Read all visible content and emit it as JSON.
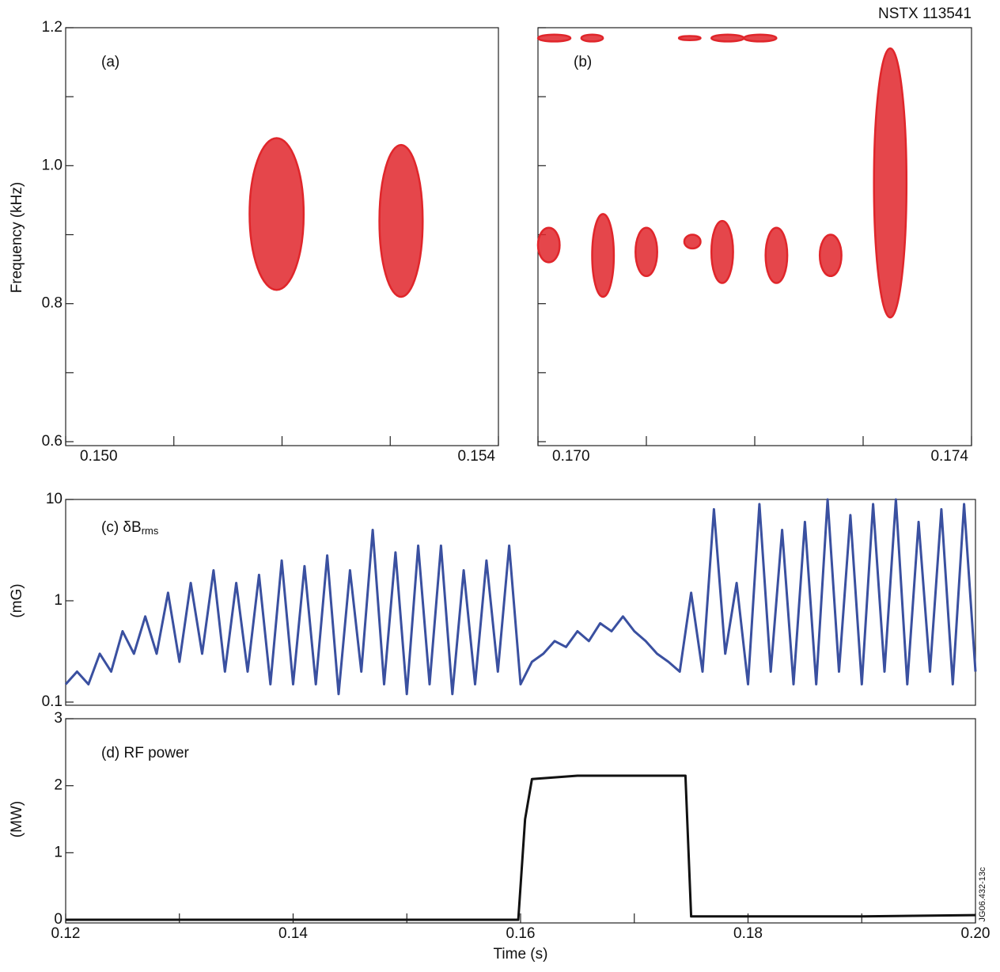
{
  "header": {
    "shot": "NSTX 113541",
    "figure_id": "JG06.432-13c",
    "frequency_label": "Frequency (kHz)"
  },
  "chart_data": [
    {
      "type": "spectrogram",
      "label": "(a)",
      "color": "#e0262b",
      "xlim": [
        0.15,
        0.154
      ],
      "xticks": [
        {
          "value": 0.15,
          "label": "0.150"
        },
        {
          "value": 0.154,
          "label": "0.154"
        }
      ],
      "xminor": [
        0.151,
        0.152,
        0.153
      ],
      "ylim": [
        0.6,
        1.2
      ],
      "yticks": [
        0.6,
        0.8,
        {
          "value": 1,
          "label": "1.0"
        },
        1.2
      ],
      "yminor": [
        0.7,
        0.9,
        1.1
      ],
      "y_tick_labels": true,
      "regions": [
        {
          "x": [
            0.1517,
            0.1522
          ],
          "y": [
            0.82,
            1.04
          ]
        },
        {
          "x": [
            0.1529,
            0.1533
          ],
          "y": [
            0.81,
            1.03
          ]
        }
      ]
    },
    {
      "type": "spectrogram",
      "label": "(b)",
      "color": "#e0262b",
      "xlim": [
        0.17,
        0.174
      ],
      "xticks": [
        {
          "value": 0.17,
          "label": "0.170"
        },
        {
          "value": 0.174,
          "label": "0.174"
        }
      ],
      "xminor": [
        0.171,
        0.172,
        0.173
      ],
      "ylim": [
        0.6,
        1.2
      ],
      "yticks": [
        0.6,
        0.8,
        1,
        1.2
      ],
      "yminor": [
        0.7,
        0.9,
        1.1
      ],
      "y_tick_labels": false,
      "regions": [
        {
          "x": [
            0.17,
            0.1703
          ],
          "y": [
            1.18,
            1.19
          ]
        },
        {
          "x": [
            0.1704,
            0.1706
          ],
          "y": [
            1.18,
            1.19
          ]
        },
        {
          "x": [
            0.1713,
            0.1715
          ],
          "y": [
            1.182,
            1.188
          ]
        },
        {
          "x": [
            0.1716,
            0.1719
          ],
          "y": [
            1.18,
            1.19
          ]
        },
        {
          "x": [
            0.1719,
            0.1722
          ],
          "y": [
            1.18,
            1.19
          ]
        },
        {
          "x": [
            0.17,
            0.1702
          ],
          "y": [
            0.86,
            0.91
          ]
        },
        {
          "x": [
            0.1705,
            0.1707
          ],
          "y": [
            0.81,
            0.93
          ]
        },
        {
          "x": [
            0.1709,
            0.1711
          ],
          "y": [
            0.84,
            0.91
          ]
        },
        {
          "x": [
            0.17135,
            0.1715
          ],
          "y": [
            0.88,
            0.9
          ]
        },
        {
          "x": [
            0.1716,
            0.1718
          ],
          "y": [
            0.83,
            0.92
          ]
        },
        {
          "x": [
            0.1721,
            0.1723
          ],
          "y": [
            0.83,
            0.91
          ]
        },
        {
          "x": [
            0.1726,
            0.1728
          ],
          "y": [
            0.84,
            0.9
          ]
        },
        {
          "x": [
            0.1731,
            0.1734
          ],
          "y": [
            0.78,
            1.17
          ]
        }
      ]
    },
    {
      "type": "line",
      "label": "(c) δB",
      "label_subscript": "rms",
      "ylabel": "(mG)",
      "color": "#3a50a0",
      "log_y": true,
      "xlim": [
        0.12,
        0.2
      ],
      "ylim": [
        0.1,
        10
      ],
      "yticks": [
        0.1,
        1,
        10
      ],
      "x": [
        0.12,
        0.121,
        0.122,
        0.123,
        0.124,
        0.125,
        0.126,
        0.127,
        0.128,
        0.129,
        0.13,
        0.131,
        0.132,
        0.133,
        0.134,
        0.135,
        0.136,
        0.137,
        0.138,
        0.139,
        0.14,
        0.141,
        0.142,
        0.143,
        0.144,
        0.145,
        0.146,
        0.147,
        0.148,
        0.149,
        0.15,
        0.151,
        0.152,
        0.153,
        0.154,
        0.155,
        0.156,
        0.157,
        0.158,
        0.159,
        0.16,
        0.161,
        0.162,
        0.163,
        0.164,
        0.165,
        0.166,
        0.167,
        0.168,
        0.169,
        0.17,
        0.171,
        0.172,
        0.173,
        0.174,
        0.175,
        0.176,
        0.177,
        0.178,
        0.179,
        0.18,
        0.181,
        0.182,
        0.183,
        0.184,
        0.185,
        0.186,
        0.187,
        0.188,
        0.189,
        0.19,
        0.191,
        0.192,
        0.193,
        0.194,
        0.195,
        0.196,
        0.197,
        0.198,
        0.199,
        0.2
      ],
      "values": [
        0.15,
        0.2,
        0.15,
        0.3,
        0.2,
        0.5,
        0.3,
        0.7,
        0.3,
        1.2,
        0.25,
        1.5,
        0.3,
        2,
        0.2,
        1.5,
        0.2,
        1.8,
        0.15,
        2.5,
        0.15,
        2.2,
        0.15,
        2.8,
        0.12,
        2,
        0.2,
        5,
        0.15,
        3,
        0.12,
        3.5,
        0.15,
        3.5,
        0.12,
        2,
        0.15,
        2.5,
        0.2,
        3.5,
        0.15,
        0.25,
        0.3,
        0.4,
        0.35,
        0.5,
        0.4,
        0.6,
        0.5,
        0.7,
        0.5,
        0.4,
        0.3,
        0.25,
        0.2,
        1.2,
        0.2,
        8,
        0.3,
        1.5,
        0.15,
        9,
        0.2,
        5,
        0.15,
        6,
        0.15,
        10,
        0.2,
        7,
        0.15,
        9,
        0.2,
        10,
        0.15,
        6,
        0.2,
        8,
        0.15,
        9,
        0.2
      ]
    },
    {
      "type": "line",
      "label": "(d) RF power",
      "ylabel": "(MW)",
      "xlabel": "Time (s)",
      "color": "#111111",
      "log_y": false,
      "xlim": [
        0.12,
        0.2
      ],
      "xticks": [
        0.12,
        0.14,
        0.16,
        0.18,
        {
          "value": 0.2,
          "label": "0.20"
        }
      ],
      "xminor": [
        0.13,
        0.15,
        0.17,
        0.19
      ],
      "ylim": [
        0,
        3
      ],
      "yticks": [
        0,
        1,
        2,
        3
      ],
      "x": [
        0.12,
        0.1598,
        0.1604,
        0.161,
        0.165,
        0.17,
        0.1745,
        0.175,
        0.18,
        0.19,
        0.2
      ],
      "values": [
        0,
        0,
        1.5,
        2.1,
        2.15,
        2.15,
        2.15,
        0.05,
        0.05,
        0.05,
        0.07
      ]
    }
  ]
}
